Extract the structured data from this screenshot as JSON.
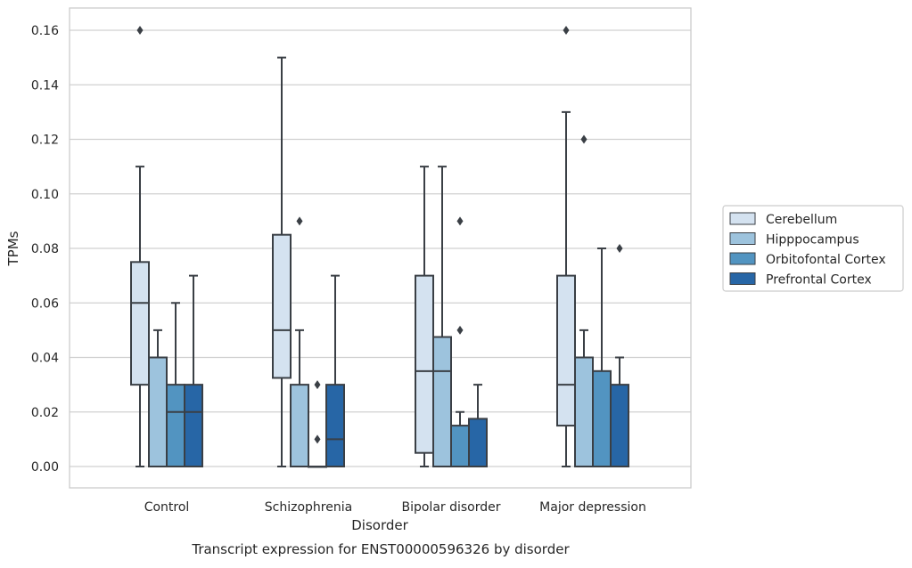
{
  "chart_data": {
    "type": "box",
    "ylabel": "TPMs",
    "xlabel": "Disorder",
    "caption": "Transcript expression for ENST00000596326 by disorder",
    "ylim": [
      -0.008,
      0.168
    ],
    "yticks": [
      0.0,
      0.02,
      0.04,
      0.06,
      0.08,
      0.1,
      0.12,
      0.14,
      0.16
    ],
    "ytick_labels": [
      "0.00",
      "0.02",
      "0.04",
      "0.06",
      "0.08",
      "0.10",
      "0.12",
      "0.14",
      "0.16"
    ],
    "categories": [
      "Control",
      "Schizophrenia",
      "Bipolar disorder",
      "Major depression"
    ],
    "grid": true,
    "legend_position": "right",
    "series": [
      {
        "name": "Cerebellum",
        "color": "#d4e2f0",
        "boxes": [
          {
            "q1": 0.03,
            "median": 0.06,
            "q3": 0.075,
            "whisker_low": 0.0,
            "whisker_high": 0.11,
            "outliers": [
              0.16
            ]
          },
          {
            "q1": 0.0325,
            "median": 0.05,
            "q3": 0.085,
            "whisker_low": 0.0,
            "whisker_high": 0.15,
            "outliers": []
          },
          {
            "q1": 0.005,
            "median": 0.035,
            "q3": 0.07,
            "whisker_low": 0.0,
            "whisker_high": 0.11,
            "outliers": []
          },
          {
            "q1": 0.015,
            "median": 0.03,
            "q3": 0.07,
            "whisker_low": 0.0,
            "whisker_high": 0.13,
            "outliers": [
              0.16
            ]
          }
        ]
      },
      {
        "name": "Hipppocampus",
        "color": "#9dc3dd",
        "boxes": [
          {
            "q1": 0.0,
            "median": 0.0,
            "q3": 0.04,
            "whisker_low": 0.0,
            "whisker_high": 0.05,
            "outliers": []
          },
          {
            "q1": 0.0,
            "median": 0.0,
            "q3": 0.03,
            "whisker_low": 0.0,
            "whisker_high": 0.05,
            "outliers": [
              0.09
            ]
          },
          {
            "q1": 0.0,
            "median": 0.035,
            "q3": 0.0475,
            "whisker_low": 0.0,
            "whisker_high": 0.11,
            "outliers": []
          },
          {
            "q1": 0.0,
            "median": 0.0,
            "q3": 0.04,
            "whisker_low": 0.0,
            "whisker_high": 0.05,
            "outliers": [
              0.12
            ]
          }
        ]
      },
      {
        "name": "Orbitofontal Cortex",
        "color": "#5294c1",
        "boxes": [
          {
            "q1": 0.0,
            "median": 0.02,
            "q3": 0.03,
            "whisker_low": 0.0,
            "whisker_high": 0.06,
            "outliers": []
          },
          {
            "q1": 0.0,
            "median": 0.0,
            "q3": 0.0,
            "whisker_low": 0.0,
            "whisker_high": 0.0,
            "outliers": [
              0.01,
              0.03
            ]
          },
          {
            "q1": 0.0,
            "median": 0.0,
            "q3": 0.015,
            "whisker_low": 0.0,
            "whisker_high": 0.02,
            "outliers": [
              0.05,
              0.09
            ]
          },
          {
            "q1": 0.0,
            "median": 0.0,
            "q3": 0.035,
            "whisker_low": 0.0,
            "whisker_high": 0.08,
            "outliers": []
          }
        ]
      },
      {
        "name": "Prefrontal Cortex",
        "color": "#2766a6",
        "boxes": [
          {
            "q1": 0.0,
            "median": 0.02,
            "q3": 0.03,
            "whisker_low": 0.0,
            "whisker_high": 0.07,
            "outliers": []
          },
          {
            "q1": 0.0,
            "median": 0.01,
            "q3": 0.03,
            "whisker_low": 0.0,
            "whisker_high": 0.07,
            "outliers": []
          },
          {
            "q1": 0.0,
            "median": 0.0,
            "q3": 0.0175,
            "whisker_low": 0.0,
            "whisker_high": 0.03,
            "outliers": []
          },
          {
            "q1": 0.0,
            "median": 0.0,
            "q3": 0.03,
            "whisker_low": 0.0,
            "whisker_high": 0.04,
            "outliers": [
              0.08
            ]
          }
        ]
      }
    ]
  }
}
